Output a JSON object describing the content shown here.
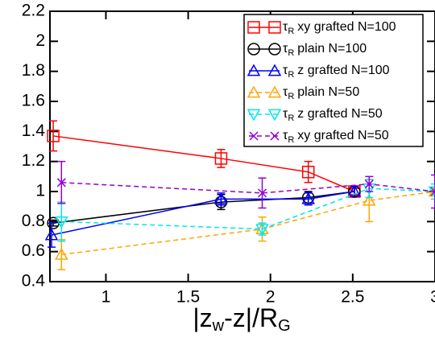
{
  "chart_data": {
    "type": "line",
    "xlabel": [
      "|z",
      "w",
      "-z|/R",
      "G"
    ],
    "legend_prefix": [
      "τ",
      "R"
    ],
    "xlim": [
      0.66,
      3
    ],
    "ylim": [
      0.4,
      2.2
    ],
    "xticks": [
      1,
      1.5,
      2,
      2.5,
      3
    ],
    "yticks": [
      0.4,
      0.6,
      0.8,
      1,
      1.2,
      1.4,
      1.6,
      1.8,
      2,
      2.2
    ],
    "legend": "upper right",
    "series": [
      {
        "name": "xy grafted N=100",
        "color": "#ff0000",
        "marker": "square",
        "linestyle": "solid",
        "x": [
          0.68,
          1.7,
          2.23,
          2.51
        ],
        "values": [
          1.37,
          1.22,
          1.13,
          1.0
        ],
        "errors": [
          0.1,
          0.06,
          0.07,
          0.02
        ]
      },
      {
        "name": "plain N=100",
        "color": "#000000",
        "marker": "circle",
        "linestyle": "solid",
        "x": [
          0.68,
          1.7,
          2.23,
          2.51
        ],
        "values": [
          0.79,
          0.93,
          0.96,
          1.0
        ],
        "errors": [
          0.02,
          0.05,
          0.04,
          0.03
        ]
      },
      {
        "name": "z grafted N=100",
        "color": "#0000ff",
        "marker": "triangle-up",
        "linestyle": "solid",
        "x": [
          0.67,
          1.7,
          2.23,
          2.51
        ],
        "values": [
          0.71,
          0.95,
          0.95,
          1.0
        ],
        "errors": [
          0.08,
          0.04,
          0.04,
          0.03
        ]
      },
      {
        "name": "plain N=50",
        "color": "#ffa500",
        "marker": "triangle-up",
        "linestyle": "dashed",
        "x": [
          0.73,
          1.95,
          2.6,
          3.0
        ],
        "values": [
          0.58,
          0.75,
          0.94,
          1.0
        ],
        "errors": [
          0.1,
          0.08,
          0.14,
          0.03
        ]
      },
      {
        "name": "z grafted N=50",
        "color": "#00e5ee",
        "marker": "triangle-down",
        "linestyle": "dashed",
        "x": [
          0.73,
          1.95,
          2.6,
          3.0
        ],
        "values": [
          0.8,
          0.75,
          1.02,
          1.0
        ],
        "errors": [
          0.13,
          0.04,
          0.06,
          0.05
        ]
      },
      {
        "name": "xy grafted N=50",
        "color": "#9400d3",
        "marker": "x",
        "linestyle": "dashed",
        "x": [
          0.73,
          1.95,
          2.6,
          3.0
        ],
        "values": [
          1.06,
          0.99,
          1.05,
          1.0
        ],
        "errors": [
          0.14,
          0.1,
          0.05,
          0.11
        ]
      }
    ]
  }
}
